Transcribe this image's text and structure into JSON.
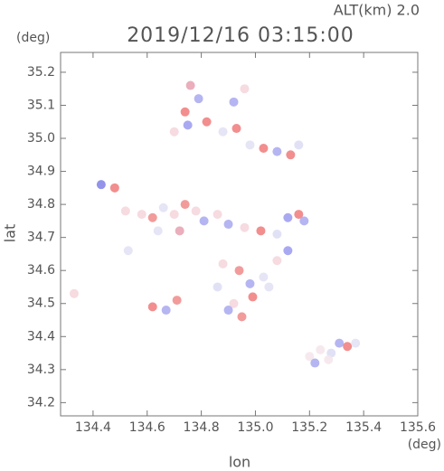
{
  "chart_data": {
    "type": "scatter",
    "title": "2019/12/16 03:15:00",
    "annotation": "ALT(km)  2.0",
    "y_unit": "(deg)",
    "x_unit": "(deg)",
    "x_label": "lon",
    "y_label": "lat",
    "xlim": [
      134.28,
      135.6
    ],
    "ylim": [
      34.16,
      35.26
    ],
    "xticks": [
      134.4,
      134.6,
      134.8,
      {
        "value": 135,
        "label": "135.0"
      },
      135.2,
      135.4,
      135.6
    ],
    "yticks": [
      34.2,
      34.3,
      34.4,
      34.5,
      34.6,
      34.7,
      34.8,
      34.9,
      {
        "value": 35,
        "label": "35.0"
      },
      35.1,
      35.2
    ],
    "x": [
      134.76,
      134.79,
      134.74,
      134.7,
      134.75,
      134.82,
      134.92,
      134.96,
      134.93,
      134.98,
      135.03,
      135.08,
      135.13,
      135.16,
      134.88,
      134.43,
      134.48,
      134.52,
      134.58,
      134.62,
      134.66,
      134.7,
      134.74,
      134.78,
      134.81,
      134.86,
      134.72,
      134.64,
      134.9,
      134.96,
      135.02,
      135.08,
      135.12,
      135.16,
      135.18,
      134.88,
      134.94,
      134.98,
      135.03,
      135.08,
      135.12,
      134.92,
      134.99,
      134.95,
      134.9,
      135.05,
      134.86,
      135.2,
      135.24,
      135.28,
      135.31,
      135.34,
      135.37,
      135.27,
      135.22,
      134.33,
      134.62,
      134.67,
      134.71,
      134.53
    ],
    "y": [
      35.16,
      35.12,
      35.08,
      35.02,
      35.04,
      35.05,
      35.11,
      35.15,
      35.03,
      34.98,
      34.97,
      34.96,
      34.95,
      34.98,
      35.02,
      34.86,
      34.85,
      34.78,
      34.77,
      34.76,
      34.79,
      34.77,
      34.8,
      34.78,
      34.75,
      34.77,
      34.72,
      34.72,
      34.74,
      34.73,
      34.72,
      34.71,
      34.76,
      34.77,
      34.75,
      34.62,
      34.6,
      34.56,
      34.58,
      34.63,
      34.66,
      34.5,
      34.52,
      34.46,
      34.48,
      34.55,
      34.55,
      34.34,
      34.36,
      34.35,
      34.38,
      34.37,
      34.38,
      34.33,
      34.32,
      34.53,
      34.49,
      34.48,
      34.51,
      34.66
    ],
    "point_colors": [
      "#e8a0b0",
      "#a8a8f0",
      "#f07a7a",
      "#f5d5dc",
      "#9a9af0",
      "#f07a7a",
      "#a8a8f0",
      "#f5d5dc",
      "#f07a7a",
      "#e0e0f5",
      "#f07a7a",
      "#a8a8f0",
      "#f07a7a",
      "#dcdcf5",
      "#e0e0f5",
      "#8080e8",
      "#f07a7a",
      "#f5d5dc",
      "#f5d5dc",
      "#f08a8a",
      "#e0e0f5",
      "#f5d5dc",
      "#f08a8a",
      "#f5d5dc",
      "#a8a8f0",
      "#f5d5dc",
      "#e8a0b0",
      "#e0e0f5",
      "#a8a8f0",
      "#f5d5dc",
      "#f07a7a",
      "#dcdcf5",
      "#9a9af0",
      "#f07a7a",
      "#a8a8f0",
      "#f5d5dc",
      "#f08a8a",
      "#a8a8f0",
      "#e0e0f5",
      "#f5d5dc",
      "#9a9af0",
      "#f5d5dc",
      "#f07a7a",
      "#f08a8a",
      "#a8a8f0",
      "#e0e0f5",
      "#dcdcf5",
      "#f5e5ea",
      "#f5e5ea",
      "#dcdcf5",
      "#a8a8f0",
      "#f07a7a",
      "#e0e0f5",
      "#f5e5ea",
      "#a8a8f0",
      "#f5d5dc",
      "#f07a7a",
      "#a8a8f0",
      "#f08a8a",
      "#e0e0f5"
    ]
  }
}
